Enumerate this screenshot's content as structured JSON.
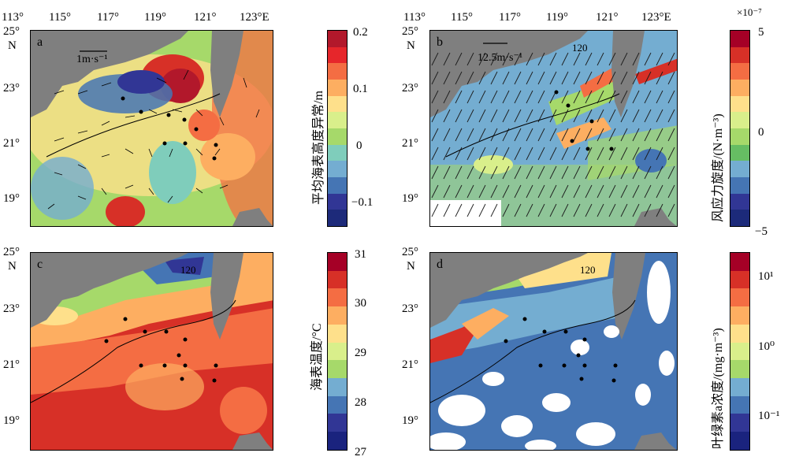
{
  "lon_ticks": [
    "113°",
    "115°",
    "117°",
    "119°",
    "121°",
    "123°E"
  ],
  "lat_ticks_top": [
    "25°",
    "N",
    "23°",
    "21°",
    "19°"
  ],
  "lat_ticks_bottom": [
    "25°",
    "N",
    "23°",
    "21°",
    "19°"
  ],
  "panels": {
    "a": {
      "label": "a",
      "scale_label": "1m·s⁻¹"
    },
    "b": {
      "label": "b",
      "scale_label": "12.5m·s⁻¹",
      "contour_label": "120"
    },
    "c": {
      "label": "c",
      "contour_label": "120"
    },
    "d": {
      "label": "d",
      "contour_label": "120"
    }
  },
  "colorbars": {
    "ssh": {
      "title": "平均海表高度异常/m",
      "ticks": [
        "0.2",
        "0.1",
        "0",
        "−0.1"
      ],
      "colors": [
        "#b2182b",
        "#e6262b",
        "#f46d43",
        "#fdae61",
        "#fee08b",
        "#d9ef8b",
        "#a6d96a",
        "#7fcdbb",
        "#74add1",
        "#4575b4",
        "#313695",
        "#1d2a7a"
      ]
    },
    "curl": {
      "title": "风应力旋度/(N·m⁻³)",
      "ticks": [
        "5",
        "0",
        "−5"
      ],
      "exponent": "×10⁻⁷",
      "colors": [
        "#a50026",
        "#d73027",
        "#f46d43",
        "#fdae61",
        "#fee08b",
        "#d9ef8b",
        "#a6d96a",
        "#66bd63",
        "#74add1",
        "#4575b4",
        "#313695",
        "#1c2a7a"
      ]
    },
    "sst": {
      "title": "海表温度/°C",
      "ticks": [
        "31",
        "30",
        "29",
        "28",
        "27"
      ],
      "colors": [
        "#a50026",
        "#d73027",
        "#f46d43",
        "#fdae61",
        "#fee08b",
        "#d9ef8b",
        "#a6d96a",
        "#74add1",
        "#4575b4",
        "#313695",
        "#1a237e"
      ]
    },
    "chl": {
      "title": "叶绿素a浓度/(mg·m⁻³)",
      "ticks": [
        "10¹",
        "10⁰",
        "10⁻¹"
      ],
      "colors": [
        "#a50026",
        "#d73027",
        "#f46d43",
        "#fdae61",
        "#fee08b",
        "#d9ef8b",
        "#a6d96a",
        "#74add1",
        "#4575b4",
        "#313695",
        "#1a237e"
      ]
    }
  },
  "stations": "black dots",
  "land_color": "#7f7f7f",
  "icons": {
    "vector": "arrow-icon"
  }
}
